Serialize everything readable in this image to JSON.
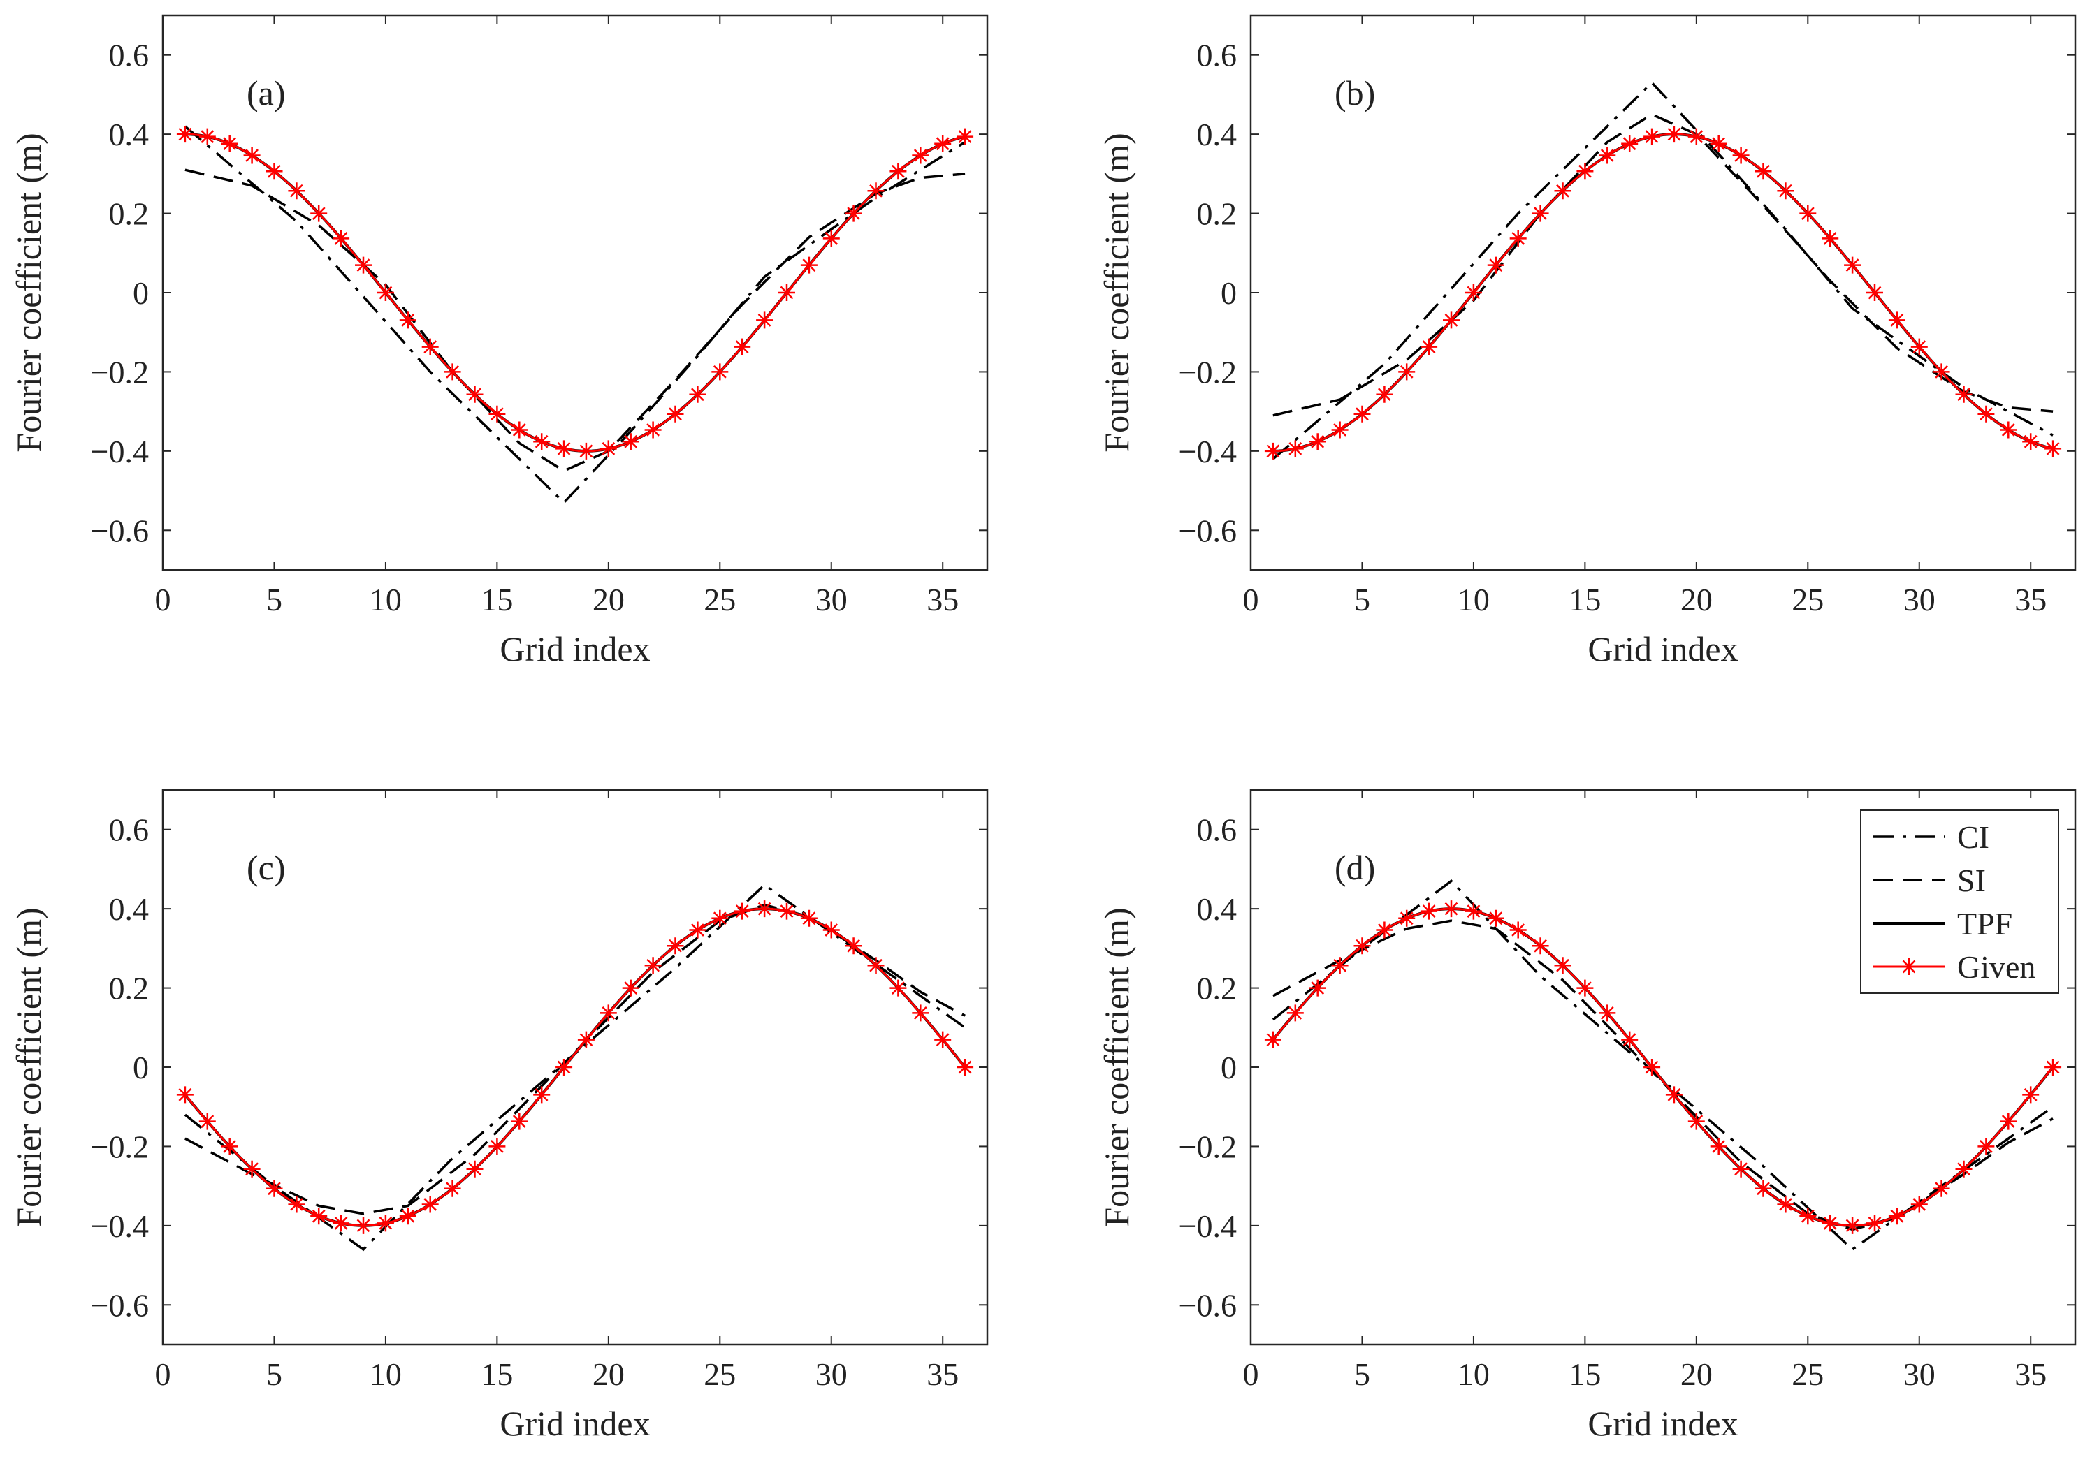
{
  "figure": {
    "xlabel": "Grid index",
    "ylabel": "Fourier coefficient (m)",
    "x_ticks": [
      "0",
      "5",
      "10",
      "15",
      "20",
      "25",
      "30",
      "35"
    ],
    "y_ticks": [
      "−0.6",
      "−0.4",
      "−0.2",
      "0",
      "0.2",
      "0.4",
      "0.6"
    ]
  },
  "legend": {
    "entries": [
      {
        "label": "CI",
        "style": "dashdot",
        "color": "#000000"
      },
      {
        "label": "SI",
        "style": "dashed",
        "color": "#000000"
      },
      {
        "label": "TPF",
        "style": "solid",
        "color": "#000000"
      },
      {
        "label": "Given",
        "style": "solid-star",
        "color": "#ff0000"
      }
    ]
  },
  "chart_data": [
    {
      "type": "line",
      "panel": "(a)",
      "xlim": [
        0,
        37
      ],
      "ylim": [
        -0.7,
        0.7
      ],
      "x": [
        1,
        36
      ],
      "amplitude": 0.4,
      "phase_grid": 1,
      "period": 36,
      "series": [
        {
          "name": "CI",
          "style": "dashdot",
          "color": "#000000",
          "points": [
            [
              1,
              0.42
            ],
            [
              6,
              0.18
            ],
            [
              12,
              -0.2
            ],
            [
              18,
              -0.53
            ],
            [
              21,
              -0.35
            ],
            [
              24,
              -0.16
            ],
            [
              27,
              0.04
            ],
            [
              32,
              0.24
            ],
            [
              36,
              0.38
            ]
          ]
        },
        {
          "name": "SI",
          "style": "dashed",
          "color": "#000000",
          "points": [
            [
              1,
              0.31
            ],
            [
              4,
              0.27
            ],
            [
              7,
              0.17
            ],
            [
              10,
              0.02
            ],
            [
              13,
              -0.2
            ],
            [
              16,
              -0.38
            ],
            [
              18,
              -0.45
            ],
            [
              20,
              -0.4
            ],
            [
              23,
              -0.22
            ],
            [
              26,
              -0.03
            ],
            [
              29,
              0.14
            ],
            [
              32,
              0.25
            ],
            [
              34,
              0.29
            ],
            [
              36,
              0.3
            ]
          ]
        },
        {
          "name": "TPF",
          "style": "solid",
          "color": "#000000",
          "generator": "cos"
        },
        {
          "name": "Given",
          "style": "star",
          "color": "#ff0000",
          "generator": "cos"
        }
      ]
    },
    {
      "type": "line",
      "panel": "(b)",
      "xlim": [
        0,
        37
      ],
      "ylim": [
        -0.7,
        0.7
      ],
      "x": [
        1,
        36
      ],
      "amplitude": 0.4,
      "phase_grid": 1,
      "period": 36,
      "negate": true,
      "series": [
        {
          "name": "CI",
          "style": "dashdot",
          "color": "#000000",
          "points": [
            [
              1,
              -0.42
            ],
            [
              6,
              -0.18
            ],
            [
              12,
              0.2
            ],
            [
              18,
              0.53
            ],
            [
              21,
              0.35
            ],
            [
              24,
              0.16
            ],
            [
              27,
              -0.04
            ],
            [
              32,
              -0.24
            ],
            [
              36,
              -0.36
            ]
          ]
        },
        {
          "name": "SI",
          "style": "dashed",
          "color": "#000000",
          "points": [
            [
              1,
              -0.31
            ],
            [
              4,
              -0.27
            ],
            [
              7,
              -0.17
            ],
            [
              10,
              -0.02
            ],
            [
              13,
              0.2
            ],
            [
              16,
              0.38
            ],
            [
              18,
              0.45
            ],
            [
              20,
              0.4
            ],
            [
              23,
              0.22
            ],
            [
              26,
              0.03
            ],
            [
              29,
              -0.14
            ],
            [
              32,
              -0.25
            ],
            [
              34,
              -0.29
            ],
            [
              36,
              -0.3
            ]
          ]
        },
        {
          "name": "TPF",
          "style": "solid",
          "color": "#000000",
          "generator": "cos"
        },
        {
          "name": "Given",
          "style": "star",
          "color": "#ff0000",
          "generator": "cos"
        }
      ]
    },
    {
      "type": "line",
      "panel": "(c)",
      "xlim": [
        0,
        37
      ],
      "ylim": [
        -0.7,
        0.7
      ],
      "x": [
        1,
        36
      ],
      "amplitude": 0.4,
      "phase_grid": 27,
      "period": 36,
      "series": [
        {
          "name": "CI",
          "style": "dashdot",
          "color": "#000000",
          "points": [
            [
              1,
              -0.12
            ],
            [
              5,
              -0.3
            ],
            [
              9,
              -0.46
            ],
            [
              13,
              -0.23
            ],
            [
              18,
              0.01
            ],
            [
              23,
              0.25
            ],
            [
              27,
              0.46
            ],
            [
              30,
              0.34
            ],
            [
              33,
              0.22
            ],
            [
              36,
              0.1
            ]
          ]
        },
        {
          "name": "SI",
          "style": "dashed",
          "color": "#000000",
          "points": [
            [
              1,
              -0.18
            ],
            [
              4,
              -0.27
            ],
            [
              7,
              -0.35
            ],
            [
              9,
              -0.37
            ],
            [
              11,
              -0.35
            ],
            [
              14,
              -0.22
            ],
            [
              18,
              0.01
            ],
            [
              22,
              0.24
            ],
            [
              25,
              0.37
            ],
            [
              27,
              0.41
            ],
            [
              29,
              0.38
            ],
            [
              32,
              0.27
            ],
            [
              34,
              0.19
            ],
            [
              36,
              0.13
            ]
          ]
        },
        {
          "name": "TPF",
          "style": "solid",
          "color": "#000000",
          "generator": "cos"
        },
        {
          "name": "Given",
          "style": "star",
          "color": "#ff0000",
          "generator": "cos"
        }
      ]
    },
    {
      "type": "line",
      "panel": "(d)",
      "xlim": [
        0,
        37
      ],
      "ylim": [
        -0.7,
        0.7
      ],
      "x": [
        1,
        36
      ],
      "amplitude": 0.4,
      "phase_grid": 9,
      "period": 36,
      "series": [
        {
          "name": "CI",
          "style": "dashdot",
          "color": "#000000",
          "points": [
            [
              1,
              0.12
            ],
            [
              5,
              0.3
            ],
            [
              9,
              0.47
            ],
            [
              13,
              0.23
            ],
            [
              18,
              -0.01
            ],
            [
              23,
              -0.25
            ],
            [
              27,
              -0.46
            ],
            [
              30,
              -0.34
            ],
            [
              33,
              -0.22
            ],
            [
              36,
              -0.1
            ]
          ]
        },
        {
          "name": "SI",
          "style": "dashed",
          "color": "#000000",
          "points": [
            [
              1,
              0.18
            ],
            [
              4,
              0.27
            ],
            [
              7,
              0.35
            ],
            [
              9,
              0.37
            ],
            [
              11,
              0.35
            ],
            [
              14,
              0.22
            ],
            [
              18,
              -0.01
            ],
            [
              22,
              -0.24
            ],
            [
              25,
              -0.37
            ],
            [
              27,
              -0.41
            ],
            [
              29,
              -0.38
            ],
            [
              32,
              -0.27
            ],
            [
              34,
              -0.19
            ],
            [
              36,
              -0.13
            ]
          ]
        },
        {
          "name": "TPF",
          "style": "solid",
          "color": "#000000",
          "generator": "cos"
        },
        {
          "name": "Given",
          "style": "star",
          "color": "#ff0000",
          "generator": "cos"
        }
      ]
    }
  ]
}
